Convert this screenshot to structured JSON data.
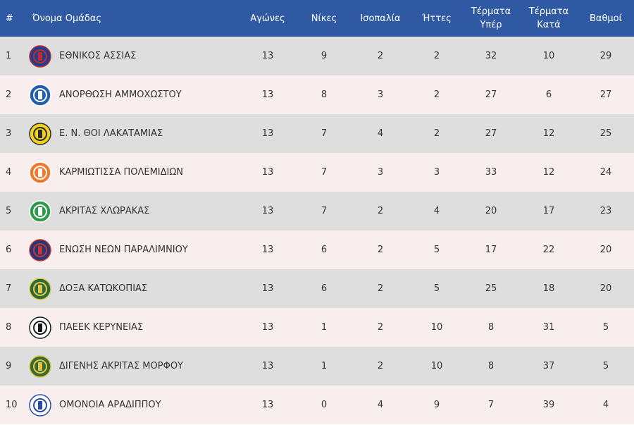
{
  "header": {
    "pos": "#",
    "team": "Όνομα Ομάδας",
    "played": "Αγώνες",
    "wins": "Νίκες",
    "draws": "Ισοπαλία",
    "losses": "Ήττες",
    "gf_line1": "Τέρματα",
    "gf_line2": "Υπέρ",
    "ga_line1": "Τέρματα",
    "ga_line2": "Κατά",
    "points": "Βαθμοί"
  },
  "rows": [
    {
      "pos": "1",
      "team": "ΕΘΝΙΚΟΣ ΑΣΣΙΑΣ",
      "played": "13",
      "wins": "9",
      "draws": "2",
      "losses": "2",
      "gf": "32",
      "ga": "10",
      "points": "29",
      "badge": "ethnikos-assias-logo",
      "badge_color": "#1f3f8f",
      "badge_accent": "#c62828"
    },
    {
      "pos": "2",
      "team": "ΑΝΟΡΘΩΣΗ ΑΜΜΟΧΩΣΤΟΥ",
      "played": "13",
      "wins": "8",
      "draws": "3",
      "losses": "2",
      "gf": "27",
      "ga": "6",
      "points": "27",
      "badge": "anorthosis-logo",
      "badge_color": "#1f5fae",
      "badge_accent": "#ffffff"
    },
    {
      "pos": "3",
      "team": "Ε. Ν. ΘΟΙ ΛΑΚΑΤΑΜΙΑΣ",
      "played": "13",
      "wins": "7",
      "draws": "4",
      "losses": "2",
      "gf": "27",
      "ga": "12",
      "points": "25",
      "badge": "thoi-lakatamias-logo",
      "badge_color": "#f2d21b",
      "badge_accent": "#2b2b2b"
    },
    {
      "pos": "4",
      "team": "ΚΑΡΜΙΩΤΙΣΣΑ ΠΟΛΕΜΙΔΙΩΝ",
      "played": "13",
      "wins": "7",
      "draws": "3",
      "losses": "3",
      "gf": "33",
      "ga": "12",
      "points": "24",
      "badge": "karmiotissa-logo",
      "badge_color": "#f07a2b",
      "badge_accent": "#ffffff"
    },
    {
      "pos": "5",
      "team": "ΑΚΡΙΤΑΣ ΧΛΩΡΑΚΑΣ",
      "played": "13",
      "wins": "7",
      "draws": "2",
      "losses": "4",
      "gf": "20",
      "ga": "17",
      "points": "23",
      "badge": "akritas-chlorakas-logo",
      "badge_color": "#2e9a4a",
      "badge_accent": "#ffffff"
    },
    {
      "pos": "6",
      "team": "ΕΝΩΣΗ ΝΕΩΝ ΠΑΡΑΛΙΜΝΙΟΥ",
      "played": "13",
      "wins": "6",
      "draws": "2",
      "losses": "5",
      "gf": "17",
      "ga": "22",
      "points": "20",
      "badge": "enp-logo",
      "badge_color": "#1c3c7c",
      "badge_accent": "#d32f2f"
    },
    {
      "pos": "7",
      "team": "ΔΟΞΑ ΚΑΤΩΚΟΠΙΑΣ",
      "played": "13",
      "wins": "6",
      "draws": "2",
      "losses": "5",
      "gf": "25",
      "ga": "18",
      "points": "20",
      "badge": "doxa-katokopias-logo",
      "badge_color": "#2f6b3a",
      "badge_accent": "#e1c84a"
    },
    {
      "pos": "8",
      "team": "ΠΑΕΕΚ ΚΕΡΥΝΕΙΑΣ",
      "played": "13",
      "wins": "1",
      "draws": "2",
      "losses": "10",
      "gf": "8",
      "ga": "31",
      "points": "5",
      "badge": "paeek-logo",
      "badge_color": "#ffffff",
      "badge_accent": "#1a1a1a"
    },
    {
      "pos": "9",
      "team": "ΔΙΓΕΝΗΣ ΑΚΡΙΤΑΣ ΜΟΡΦΟΥ",
      "played": "13",
      "wins": "1",
      "draws": "2",
      "losses": "10",
      "gf": "8",
      "ga": "37",
      "points": "5",
      "badge": "digenis-morfou-logo",
      "badge_color": "#3a6b2e",
      "badge_accent": "#e6c34a"
    },
    {
      "pos": "10",
      "team": "ΟΜΟΝΟΙΑ ΑΡΑΔΙΠΠΟΥ",
      "played": "13",
      "wins": "0",
      "draws": "4",
      "losses": "9",
      "gf": "7",
      "ga": "39",
      "points": "4",
      "badge": "omonoia-aradippou-logo",
      "badge_color": "#ffffff",
      "badge_accent": "#2a4aa8"
    }
  ],
  "colors": {
    "header_bg": "#2f5aa3",
    "row_odd": "#dedede",
    "row_even": "#f8eeee"
  }
}
